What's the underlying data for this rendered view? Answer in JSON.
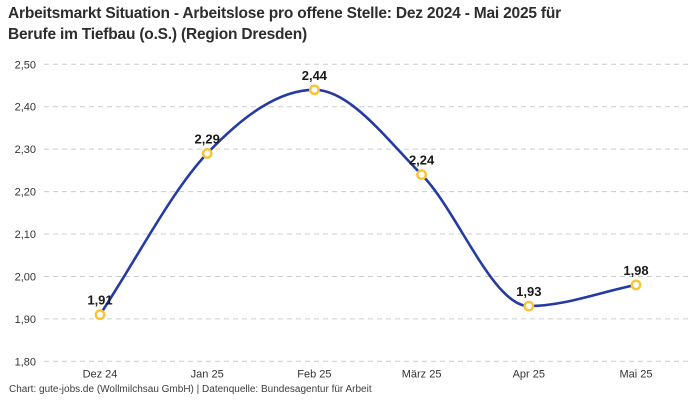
{
  "header": {
    "title_line1": "Arbeitsmarkt Situation - Arbeitslose pro offene Stelle: Dez 2024 - Mai 2025 für",
    "title_line2": "Berufe im Tiefbau (o.S.) (Region Dresden)"
  },
  "footer": {
    "credit": "Chart: gute-jobs.de (Wollmilchsau GmbH) | Datenquelle: Bundesagentur für Arbeit"
  },
  "chart_data": {
    "type": "line",
    "title": "Arbeitsmarkt Situation - Arbeitslose pro offene Stelle: Dez 2024 - Mai 2025 für Berufe im Tiefbau (o.S.) (Region Dresden)",
    "categories": [
      "Dez 24",
      "Jan 25",
      "Feb 25",
      "März 25",
      "Apr 25",
      "Mai 25"
    ],
    "values": [
      1.91,
      2.29,
      2.44,
      2.24,
      1.93,
      1.98
    ],
    "value_labels": [
      "1,91",
      "2,29",
      "2,44",
      "2,24",
      "1,93",
      "1,98"
    ],
    "y_ticks": [
      {
        "value": 2.5,
        "label": "2,50"
      },
      {
        "value": 2.4,
        "label": "2,40"
      },
      {
        "value": 2.3,
        "label": "2,30"
      },
      {
        "value": 2.2,
        "label": "2,20"
      },
      {
        "value": 2.1,
        "label": "2,10"
      },
      {
        "value": 2.0,
        "label": "2,00"
      },
      {
        "value": 1.9,
        "label": "1,90"
      },
      {
        "value": 1.8,
        "label": "1,80"
      }
    ],
    "ylim": [
      1.8,
      2.5
    ],
    "xlabel": "",
    "ylabel": "",
    "legend": "none",
    "grid": "horizontal-dashed",
    "interpolation": "monotone",
    "colors": {
      "line": "#253ba3",
      "marker_stroke": "#fcc332",
      "marker_fill": "#ffffff",
      "grid": "#cccccc",
      "axis_text": "#333333",
      "value_label_text": "#1a1a1a",
      "title_text": "#2d2d2d",
      "footer_text": "#3d3d3d"
    }
  }
}
